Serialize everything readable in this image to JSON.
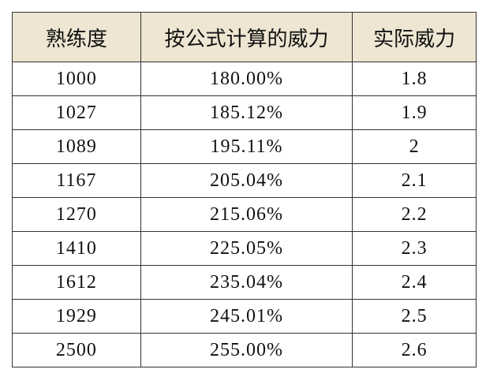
{
  "table": {
    "header": [
      "熟练度",
      "按公式计算的威力",
      "实际威力"
    ],
    "rows": [
      [
        "1000",
        "180.00%",
        "1.8"
      ],
      [
        "1027",
        "185.12%",
        "1.9"
      ],
      [
        "1089",
        "195.11%",
        "2"
      ],
      [
        "1167",
        "205.04%",
        "2.1"
      ],
      [
        "1270",
        "215.06%",
        "2.2"
      ],
      [
        "1410",
        "225.05%",
        "2.3"
      ],
      [
        "1612",
        "235.04%",
        "2.4"
      ],
      [
        "1929",
        "245.01%",
        "2.5"
      ],
      [
        "2500",
        "255.00%",
        "2.6"
      ]
    ]
  }
}
